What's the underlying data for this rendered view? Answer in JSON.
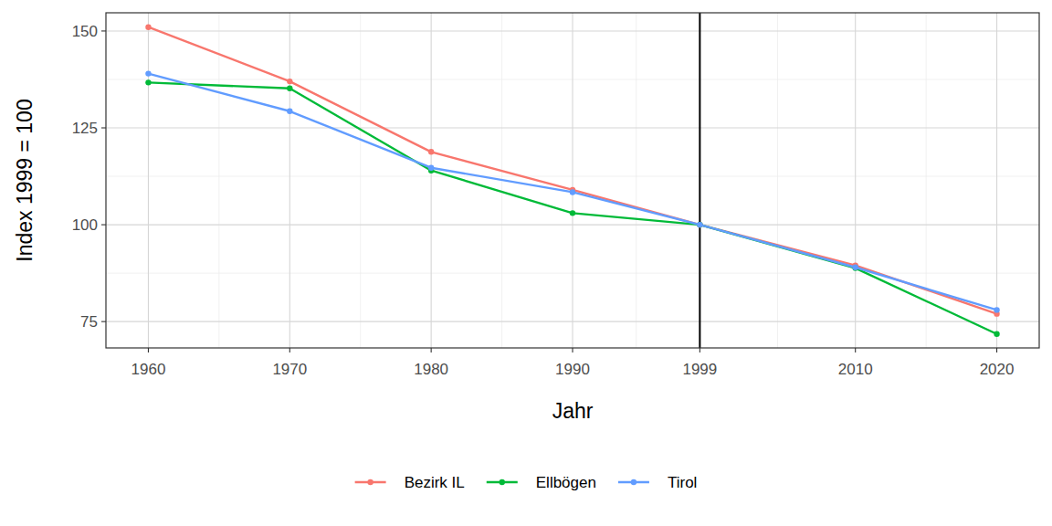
{
  "chart_data": {
    "type": "line",
    "x_label": "Jahr",
    "y_label": "Index 1999 = 100",
    "x": [
      1960,
      1970,
      1980,
      1990,
      1999,
      2010,
      2020
    ],
    "series": [
      {
        "name": "Bezirk IL",
        "color": "#F8766D",
        "values": [
          151,
          137,
          118.8,
          109,
          100,
          89.5,
          77
        ]
      },
      {
        "name": "Ellbögen",
        "color": "#00BA38",
        "values": [
          136.7,
          135.2,
          114,
          103,
          100,
          88.8,
          71.8
        ]
      },
      {
        "name": "Tirol",
        "color": "#619CFF",
        "values": [
          139,
          129.3,
          114.7,
          108.4,
          100,
          89,
          78
        ]
      }
    ],
    "xlim": [
      1957,
      2023
    ],
    "xticks": [
      1960,
      1970,
      1980,
      1990,
      1999,
      2010,
      2020
    ],
    "ylim": [
      68.2,
      154.7
    ],
    "yticks": [
      75,
      100,
      125,
      150
    ],
    "grid": true,
    "legend": "bottom",
    "marker": "circle",
    "annotations": [
      {
        "type": "vline",
        "x": 1999
      }
    ]
  }
}
